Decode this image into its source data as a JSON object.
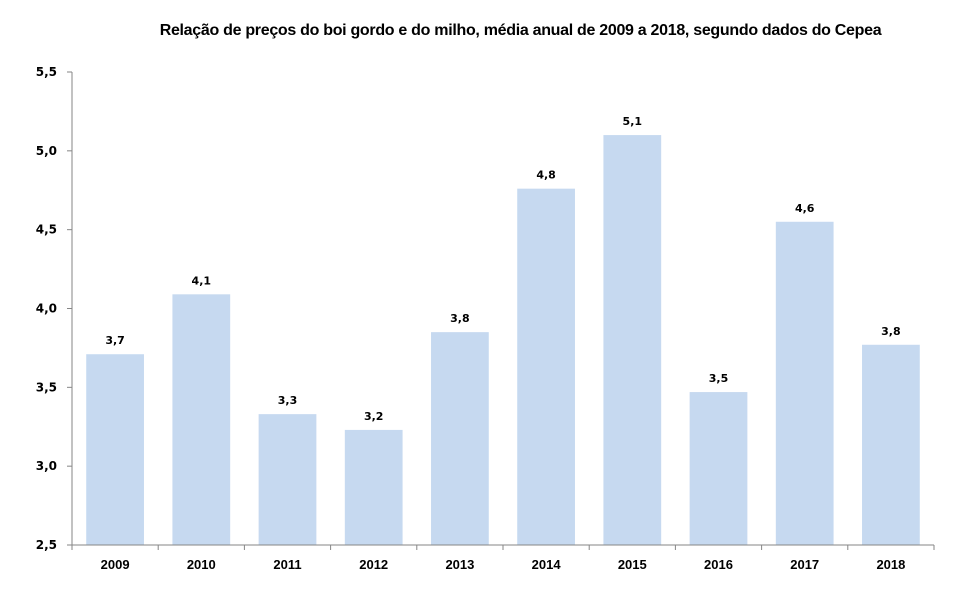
{
  "chart_data": {
    "type": "bar",
    "title": "Relação de preços do boi gordo e do milho, média anual de 2009 a 2018, segundo dados do Cepea",
    "xlabel": "",
    "ylabel": "",
    "categories": [
      "2009",
      "2010",
      "2011",
      "2012",
      "2013",
      "2014",
      "2015",
      "2016",
      "2017",
      "2018"
    ],
    "values": [
      3.71,
      4.09,
      3.33,
      3.23,
      3.85,
      4.76,
      5.1,
      3.47,
      4.55,
      3.77
    ],
    "data_labels": [
      "3,7",
      "4,1",
      "3,3",
      "3,2",
      "3,8",
      "4,8",
      "5,1",
      "3,5",
      "4,6",
      "3,8"
    ],
    "ylim": [
      2.5,
      5.5
    ],
    "yticks": [
      2.5,
      3.0,
      3.5,
      4.0,
      4.5,
      5.0,
      5.5
    ],
    "ytick_labels": [
      "2,5",
      "3,0",
      "3,5",
      "4,0",
      "4,5",
      "5,0",
      "5,5"
    ],
    "grid": false,
    "legend": "none",
    "bar_color": "#c6d9f0",
    "axis_color": "#868686"
  }
}
